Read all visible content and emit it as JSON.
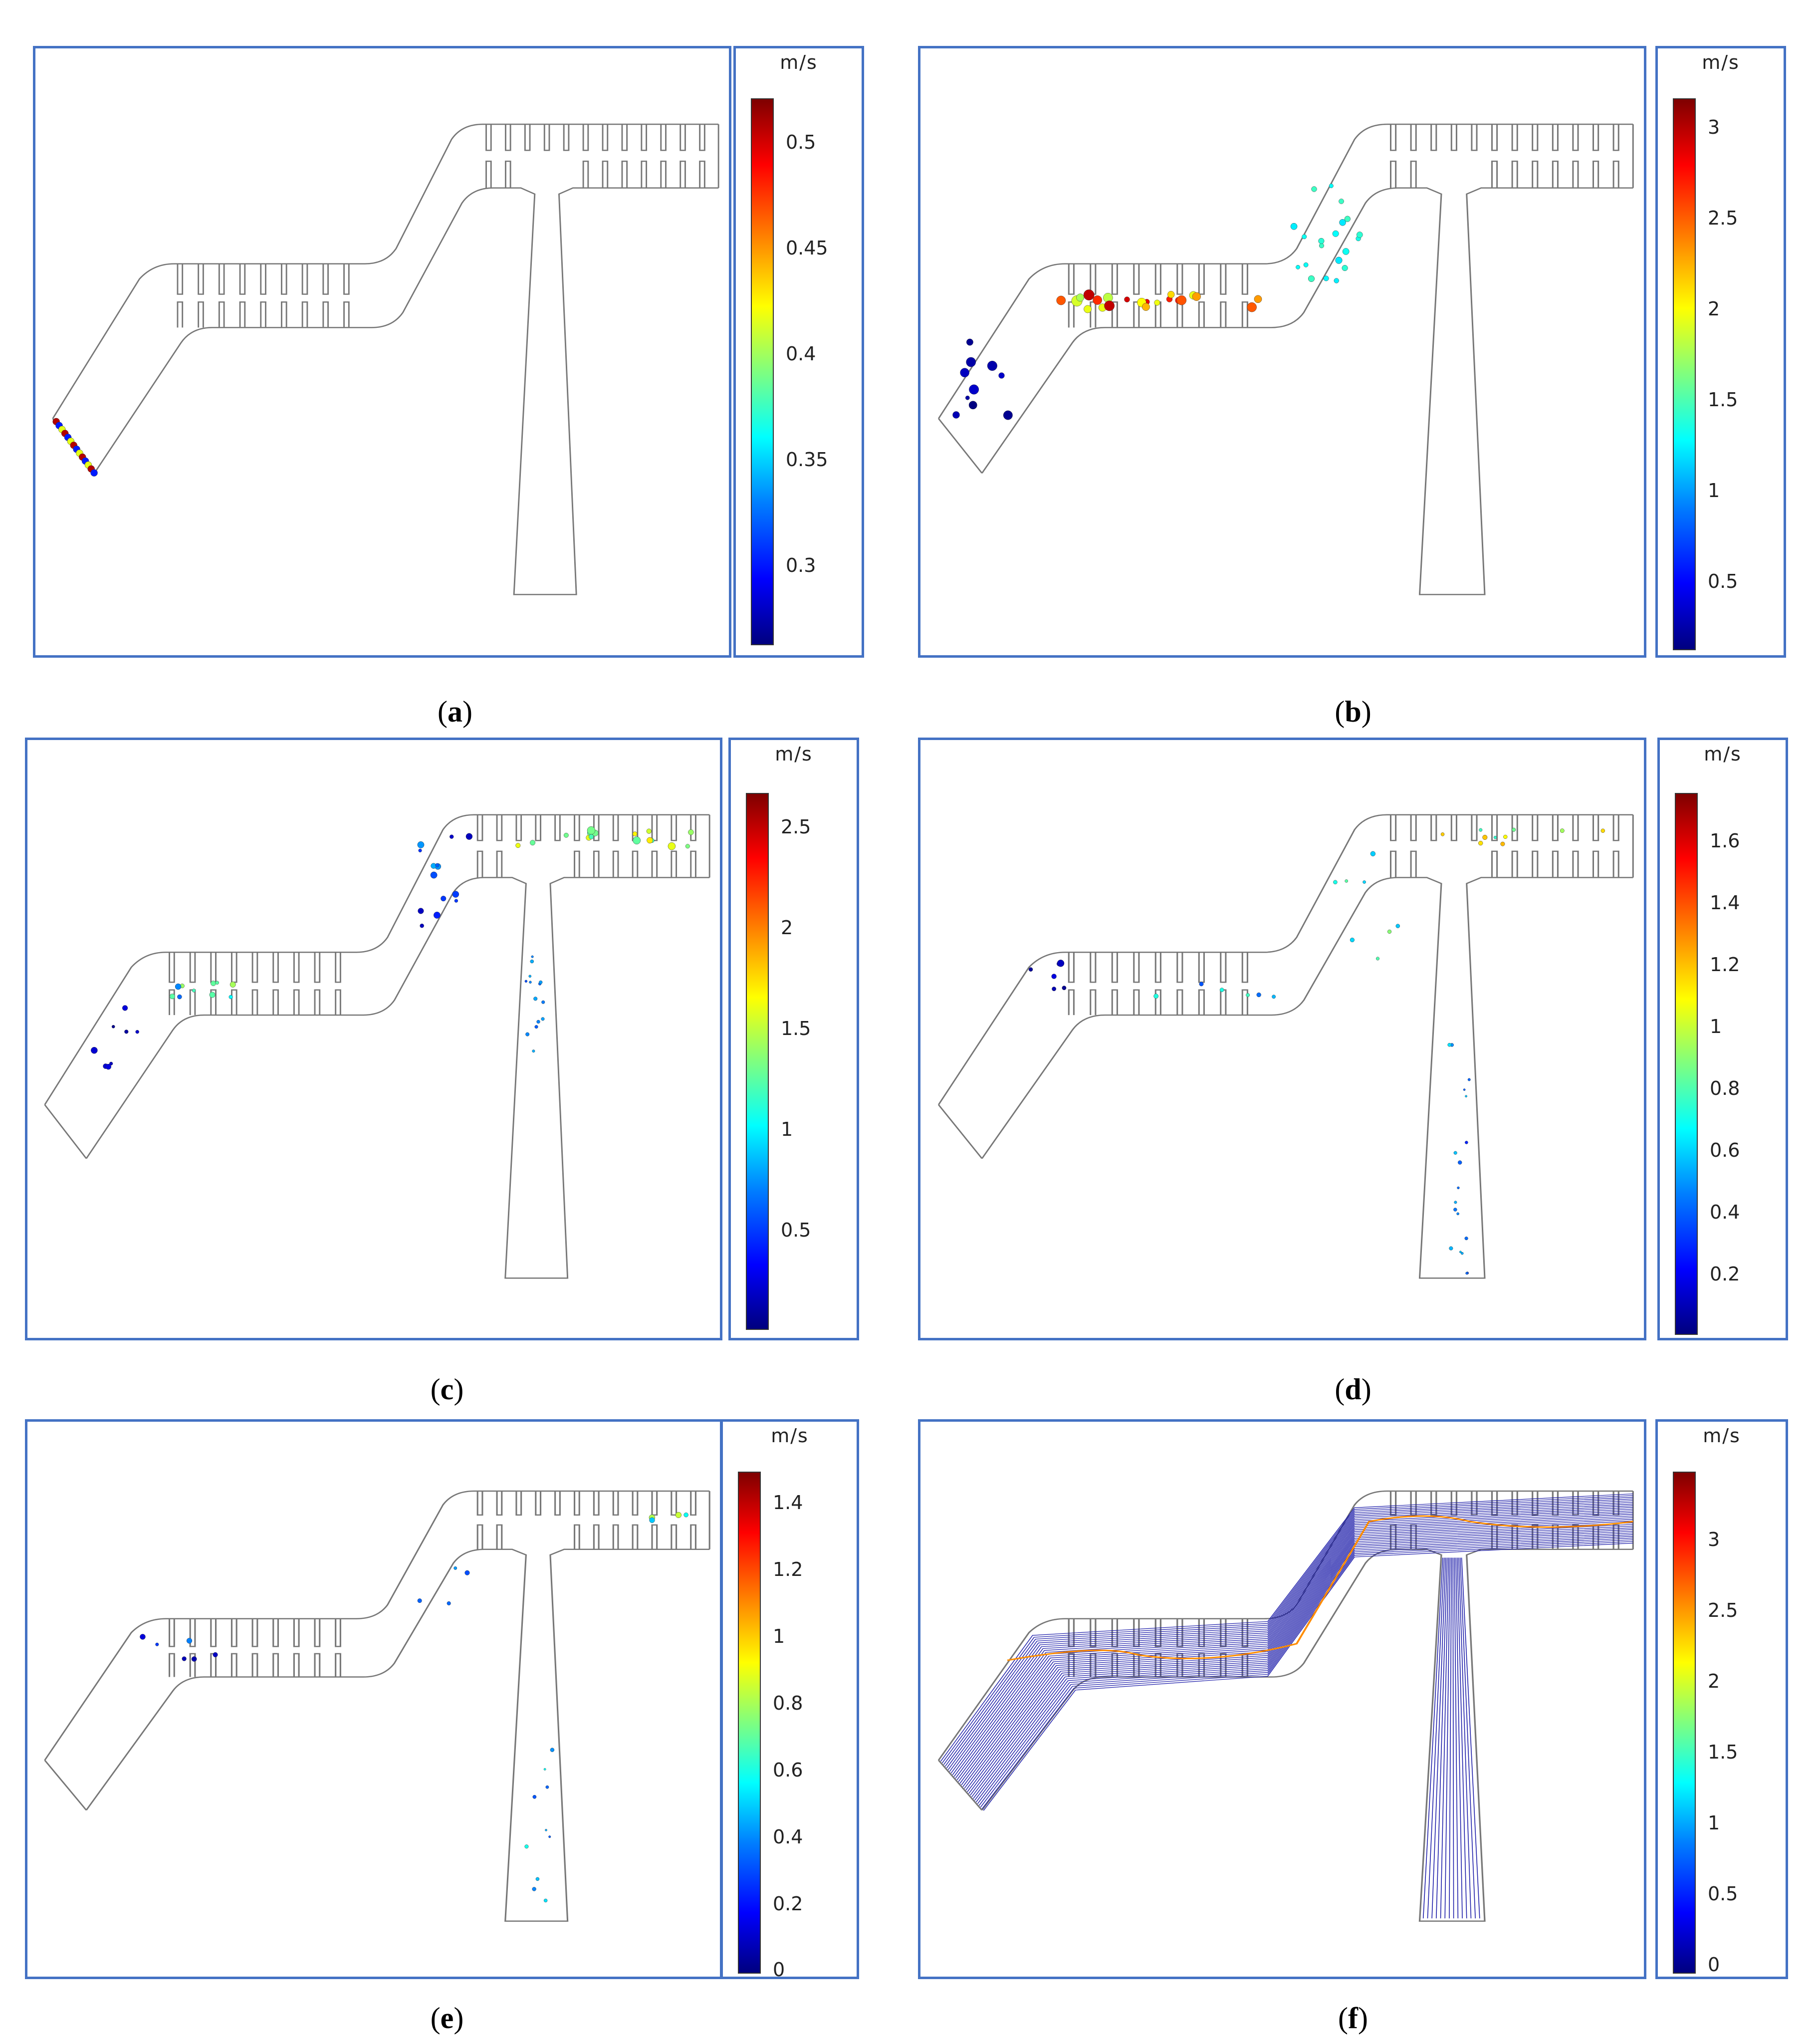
{
  "unit_label": "m/s",
  "panels": [
    {
      "id": "a",
      "caption_letter": "a",
      "ticks": [
        "0.5",
        "0.45",
        "0.4",
        "0.35",
        "0.3"
      ]
    },
    {
      "id": "b",
      "caption_letter": "b",
      "ticks": [
        "3",
        "2.5",
        "2",
        "1.5",
        "1",
        "0.5"
      ]
    },
    {
      "id": "c",
      "caption_letter": "c",
      "ticks": [
        "2.5",
        "2",
        "1.5",
        "1",
        "0.5"
      ]
    },
    {
      "id": "d",
      "caption_letter": "d",
      "ticks": [
        "1.6",
        "1.4",
        "1.2",
        "1",
        "0.8",
        "0.6",
        "0.4",
        "0.2"
      ]
    },
    {
      "id": "e",
      "caption_letter": "e",
      "ticks": [
        "1.4",
        "1.2",
        "1",
        "0.8",
        "0.6",
        "0.4",
        "0.2",
        "0"
      ]
    },
    {
      "id": "f",
      "caption_letter": "f",
      "ticks": [
        "3",
        "2.5",
        "2",
        "1.5",
        "1",
        "0.5",
        "0"
      ]
    }
  ],
  "colors": {
    "frame": "#4472c4",
    "geometry": "#777777",
    "streamline": "#1a1aa8"
  },
  "colormap": "jet"
}
